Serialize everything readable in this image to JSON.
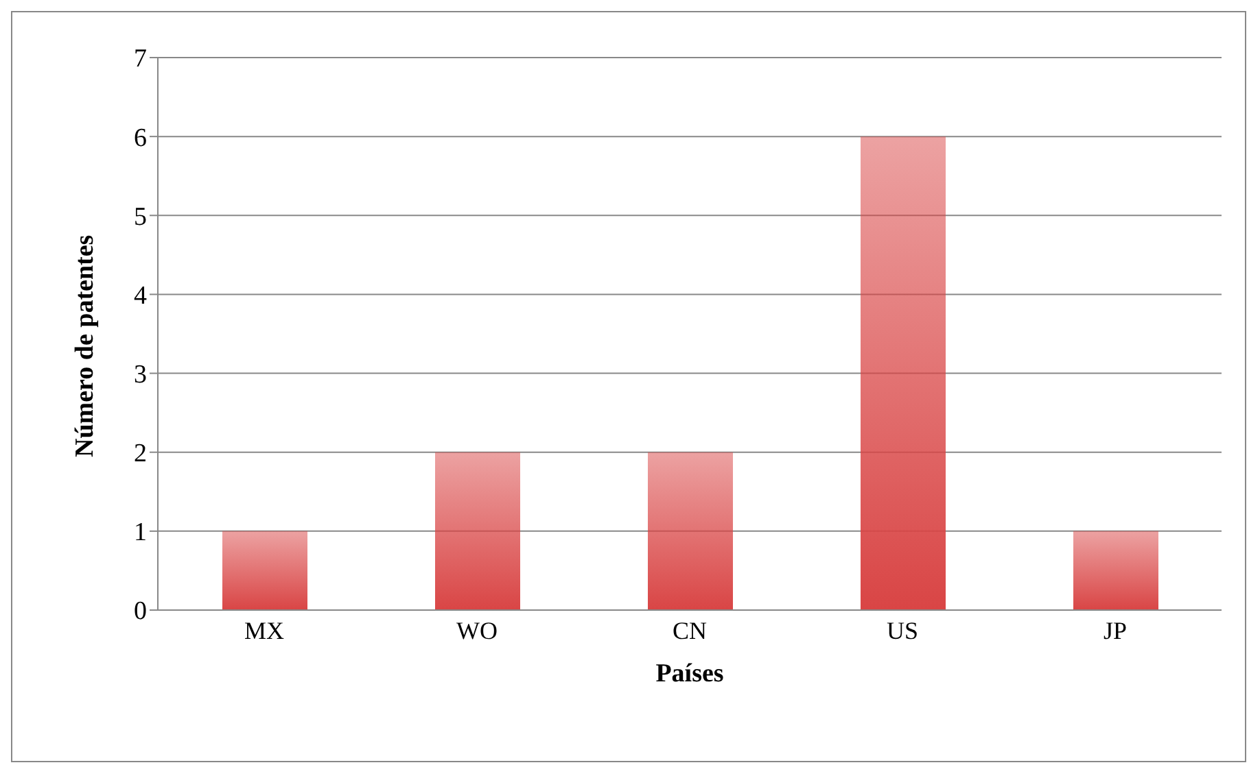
{
  "chart_data": {
    "type": "bar",
    "xlabel": "Países",
    "ylabel": "Número de patentes",
    "categories": [
      "MX",
      "WO",
      "CN",
      "US",
      "JP"
    ],
    "values": [
      1,
      2,
      2,
      6,
      1
    ],
    "color": "#d94545",
    "ylim": [
      0,
      7
    ],
    "yticks": [
      0,
      1,
      2,
      3,
      4,
      5,
      6,
      7
    ],
    "grid": "y",
    "legend": false
  }
}
